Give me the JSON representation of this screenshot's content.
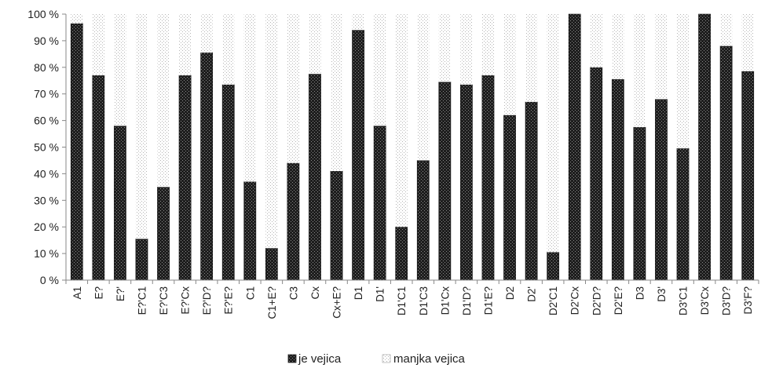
{
  "chart_data": {
    "type": "bar",
    "stacked": true,
    "percent_stacked": true,
    "categories": [
      "A1",
      "E?",
      "E?'",
      "E?'C1",
      "E?'C3",
      "E?'Cx",
      "E?'D?",
      "E?'E?",
      "C1",
      "C1+E?",
      "C3",
      "Cx",
      "Cx+E?",
      "D1",
      "D1'",
      "D1'C1",
      "D1'C3",
      "D1'Cx",
      "D1'D?",
      "D1'E?",
      "D2",
      "D2'",
      "D2'C1",
      "D2'Cx",
      "D2'D?",
      "D2'E?",
      "D3",
      "D3'",
      "D3'C1",
      "D3'Cx",
      "D3'D?",
      "D3'F?"
    ],
    "series": [
      {
        "name": "je vejica",
        "values": [
          96.5,
          77,
          58,
          15.5,
          35,
          77,
          85.5,
          73.5,
          37,
          12,
          44,
          77.5,
          41,
          94,
          58,
          20,
          45,
          74.5,
          73.5,
          77,
          62,
          67,
          10.5,
          100,
          80,
          75.5,
          57.5,
          68,
          49.5,
          100,
          88,
          78.5
        ]
      },
      {
        "name": "manjka vejica",
        "values": [
          3.5,
          23,
          42,
          84.5,
          65,
          23,
          14.5,
          26.5,
          63,
          88,
          56,
          22.5,
          59,
          6,
          42,
          80,
          55,
          25.5,
          26.5,
          23,
          38,
          33,
          89.5,
          0,
          20,
          24.5,
          42.5,
          32,
          50.5,
          0,
          12,
          21.5
        ]
      }
    ],
    "ylim": [
      0,
      100
    ],
    "yticks": [
      "0 %",
      "10 %",
      "20 %",
      "30 %",
      "40 %",
      "50 %",
      "60 %",
      "70 %",
      "80 %",
      "90 %",
      "100 %"
    ],
    "grid": false,
    "legend_position": "bottom",
    "colors": {
      "je_vejica": "#1a1a1a",
      "manjka_vejica": "#ffffff"
    }
  }
}
